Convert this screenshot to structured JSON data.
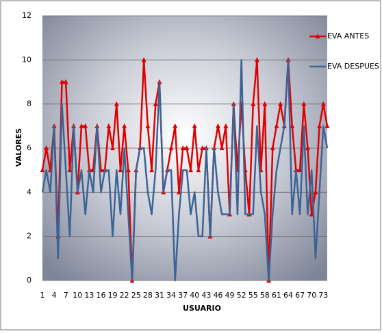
{
  "chart_data": {
    "type": "line",
    "x_label": "USUARIO",
    "y_label": "VALORES",
    "categories": [
      "1",
      null,
      null,
      "4",
      null,
      null,
      "7",
      null,
      null,
      "10",
      null,
      null,
      "13",
      null,
      null,
      "16",
      null,
      null,
      "19",
      null,
      null,
      "22",
      null,
      null,
      "25",
      null,
      null,
      "28",
      null,
      null,
      "31",
      null,
      null,
      "34",
      null,
      null,
      "37",
      null,
      null,
      "40",
      null,
      null,
      "43",
      null,
      null,
      "46",
      null,
      null,
      "49",
      null,
      null,
      "52",
      null,
      null,
      "55",
      null,
      null,
      "58",
      null,
      null,
      "61",
      null,
      null,
      "64",
      null,
      null,
      "67",
      null,
      null,
      "70",
      null,
      null,
      "73",
      null
    ],
    "series": [
      {
        "name": "EVA ANTES",
        "color": "#e00000",
        "marker": "triangle",
        "values": [
          5,
          6,
          5,
          7,
          2,
          9,
          9,
          5,
          7,
          4,
          7,
          7,
          5,
          5,
          7,
          5,
          5,
          7,
          6,
          8,
          5,
          7,
          5,
          0,
          5,
          6,
          10,
          7,
          5,
          8,
          9,
          4,
          5,
          6,
          7,
          4,
          6,
          6,
          5,
          7,
          5,
          6,
          6,
          2,
          6,
          7,
          6,
          7,
          3,
          8,
          5,
          8,
          5,
          3,
          8,
          10,
          5,
          8,
          0,
          6,
          7,
          8,
          7,
          10,
          7,
          5,
          5,
          8,
          6,
          3,
          4,
          7,
          8,
          7
        ]
      },
      {
        "name": "EVA DESPUES",
        "color": "#3d6394",
        "marker": "none",
        "values": [
          4,
          5,
          4,
          7,
          1,
          8,
          5,
          2,
          7,
          4,
          5,
          3,
          5,
          4,
          7,
          4,
          5,
          5,
          2,
          5,
          3,
          6,
          3,
          0,
          5,
          6,
          6,
          4,
          3,
          5,
          9,
          4,
          5,
          5,
          0,
          3,
          5,
          5,
          3,
          4,
          2,
          2,
          6,
          2,
          6,
          4,
          3,
          3,
          3,
          8,
          3,
          10,
          3,
          3,
          3,
          7,
          4,
          3,
          0,
          3,
          5,
          6,
          7,
          10,
          3,
          5,
          3,
          7,
          3,
          5,
          1,
          4,
          7,
          6
        ]
      }
    ],
    "ylim": [
      0,
      12
    ],
    "yticks": [
      0,
      2,
      4,
      6,
      8,
      10,
      12
    ],
    "grid": true,
    "legend": "right"
  }
}
